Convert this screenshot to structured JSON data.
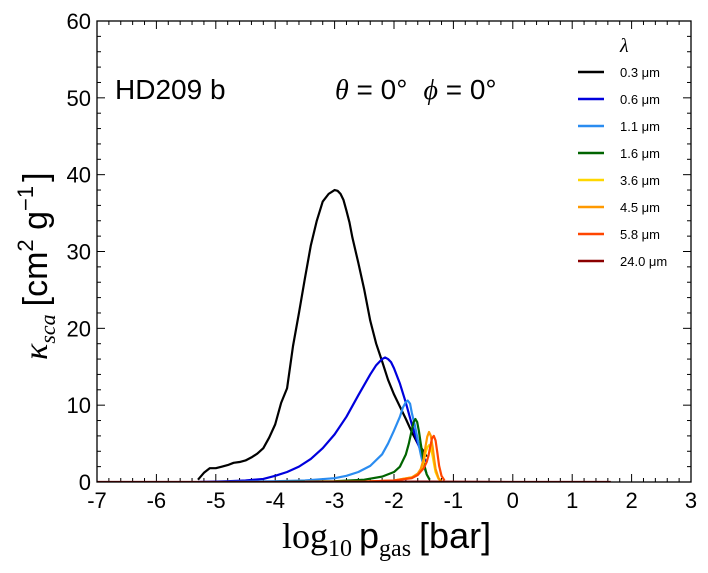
{
  "chart_data": {
    "type": "line",
    "title": "",
    "xlabel": "log₁₀ p_gas [bar]",
    "xlabel_parts": {
      "prefix": "log",
      "sub": "10",
      "var": "p",
      "var_sub": "gas",
      "unit": "[bar]"
    },
    "ylabel": "κ_sca [cm² g⁻¹]",
    "ylabel_parts": {
      "symbol": "κ",
      "sub": "sca",
      "unit_open": "[cm",
      "exp1": "2",
      "g": " g",
      "exp2": "−1",
      "unit_close": "]"
    },
    "xlim": [
      -7,
      3
    ],
    "ylim": [
      0,
      60
    ],
    "xticks": [
      "-7",
      "-6",
      "-5",
      "-4",
      "-3",
      "-2",
      "-1",
      "0",
      "1",
      "2",
      "3"
    ],
    "yticks": [
      "0",
      "10",
      "20",
      "30",
      "40",
      "50",
      "60"
    ],
    "annotations": {
      "planet": "HD209 b",
      "theta_symbol": "θ",
      "theta_value": " = 0°",
      "phi_symbol": "ϕ",
      "phi_value": " = 0°"
    },
    "legend_title": "λ",
    "legend_position": "top-right",
    "series": [
      {
        "name": "0.3 μm",
        "color": "#000000",
        "x": [
          -5.3,
          -5.2,
          -5.1,
          -5.0,
          -4.9,
          -4.8,
          -4.7,
          -4.6,
          -4.5,
          -4.4,
          -4.3,
          -4.2,
          -4.1,
          -4.0,
          -3.9,
          -3.8,
          -3.7,
          -3.6,
          -3.5,
          -3.4,
          -3.3,
          -3.2,
          -3.1,
          -3.0,
          -2.95,
          -2.9,
          -2.85,
          -2.8,
          -2.75,
          -2.7,
          -2.6,
          -2.5,
          -2.4,
          -2.3,
          -2.2,
          -2.1,
          -2.0,
          -1.9,
          -1.8,
          -1.7,
          -1.6,
          -1.5,
          -1.45
        ],
        "y": [
          0.3,
          1.2,
          1.8,
          1.8,
          2.0,
          2.2,
          2.5,
          2.6,
          2.8,
          3.2,
          3.7,
          4.4,
          5.8,
          7.5,
          10.3,
          12.2,
          17.7,
          22.0,
          26.5,
          30.8,
          34.0,
          36.5,
          37.5,
          38.0,
          37.9,
          37.5,
          36.7,
          35.3,
          33.8,
          31.8,
          28.5,
          25.0,
          21.0,
          18.0,
          15.7,
          13.3,
          11.4,
          9.8,
          8.2,
          6.5,
          5.0,
          4.0,
          3.3
        ]
      },
      {
        "name": "0.6 μm",
        "color": "#0000dd",
        "x": [
          -5.3,
          -5.0,
          -4.8,
          -4.5,
          -4.2,
          -4.0,
          -3.8,
          -3.6,
          -3.4,
          -3.2,
          -3.0,
          -2.8,
          -2.6,
          -2.4,
          -2.3,
          -2.2,
          -2.15,
          -2.1,
          -2.05,
          -2.0,
          -1.9,
          -1.8,
          -1.7,
          -1.6,
          -1.5,
          -1.45
        ],
        "y": [
          0.0,
          0.05,
          0.1,
          0.2,
          0.4,
          0.8,
          1.3,
          2.0,
          3.0,
          4.4,
          6.2,
          8.5,
          11.3,
          14.0,
          15.2,
          16.0,
          16.2,
          16.0,
          15.6,
          14.8,
          12.8,
          10.3,
          7.5,
          5.0,
          3.2,
          2.6
        ]
      },
      {
        "name": "1.1 μm",
        "color": "#2a8cf0",
        "x": [
          -5.0,
          -4.0,
          -3.5,
          -3.0,
          -2.8,
          -2.6,
          -2.4,
          -2.2,
          -2.1,
          -2.0,
          -1.9,
          -1.85,
          -1.8,
          -1.77,
          -1.73,
          -1.7,
          -1.65,
          -1.6,
          -1.55,
          -1.5,
          -1.45
        ],
        "y": [
          0.0,
          0.1,
          0.2,
          0.5,
          0.8,
          1.3,
          2.1,
          3.6,
          5.0,
          6.7,
          8.5,
          9.7,
          10.4,
          10.6,
          10.2,
          9.0,
          7.4,
          5.5,
          3.6,
          2.0,
          1.1
        ]
      },
      {
        "name": "1.6 μm",
        "color": "#006400",
        "x": [
          -4.0,
          -3.0,
          -2.5,
          -2.2,
          -2.0,
          -1.9,
          -1.8,
          -1.75,
          -1.7,
          -1.67,
          -1.64,
          -1.61,
          -1.58,
          -1.55,
          -1.52,
          -1.5,
          -1.45,
          -1.4
        ],
        "y": [
          0.0,
          0.1,
          0.3,
          0.7,
          1.3,
          2.0,
          3.6,
          5.0,
          6.8,
          7.8,
          8.2,
          7.8,
          6.6,
          5.0,
          3.6,
          2.5,
          1.0,
          0.3
        ]
      },
      {
        "name": "3.6 μm",
        "color": "#ffd700",
        "x": [
          -3.5,
          -2.5,
          -2.0,
          -1.7,
          -1.6,
          -1.55,
          -1.5,
          -1.47,
          -1.44,
          -1.41,
          -1.38,
          -1.35,
          -1.32,
          -1.3,
          -1.25,
          -1.2
        ],
        "y": [
          0.0,
          0.05,
          0.2,
          0.6,
          1.0,
          1.5,
          2.6,
          3.8,
          4.5,
          4.8,
          4.4,
          3.4,
          2.1,
          1.3,
          0.4,
          0.1
        ]
      },
      {
        "name": "4.5 μm",
        "color": "#ff9900",
        "x": [
          -3.5,
          -2.5,
          -2.0,
          -1.7,
          -1.6,
          -1.55,
          -1.5,
          -1.47,
          -1.44,
          -1.41,
          -1.38,
          -1.35,
          -1.32,
          -1.3,
          -1.25,
          -1.2
        ],
        "y": [
          0.0,
          0.05,
          0.2,
          0.6,
          1.1,
          1.7,
          3.0,
          4.6,
          5.9,
          6.5,
          6.0,
          4.6,
          2.8,
          1.7,
          0.5,
          0.1
        ]
      },
      {
        "name": "5.8 μm",
        "color": "#ff4500",
        "x": [
          -3.5,
          -2.5,
          -2.0,
          -1.7,
          -1.6,
          -1.5,
          -1.45,
          -1.42,
          -1.39,
          -1.36,
          -1.33,
          -1.3,
          -1.27,
          -1.24,
          -1.2,
          -1.15
        ],
        "y": [
          0.0,
          0.05,
          0.2,
          0.5,
          0.9,
          1.8,
          2.6,
          3.4,
          4.6,
          5.7,
          6.0,
          5.4,
          3.8,
          2.1,
          0.8,
          0.2
        ]
      },
      {
        "name": "24.0 μm",
        "color": "#8b0000",
        "x": [
          -7.0,
          -5.5,
          -4.0,
          -2.5,
          -1.5,
          -1.0,
          0.0,
          1.0,
          1.65
        ],
        "y": [
          0.0,
          0.0,
          0.0,
          0.02,
          0.05,
          0.03,
          0.0,
          0.0,
          0.0
        ]
      }
    ]
  }
}
